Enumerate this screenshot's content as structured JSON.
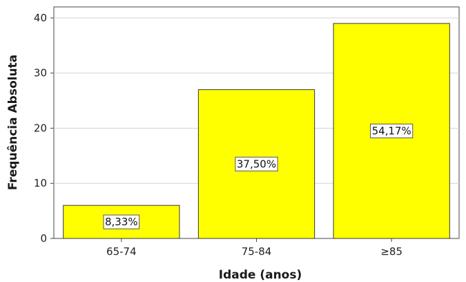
{
  "chart_data": {
    "type": "bar",
    "categories": [
      "65-74",
      "75-84",
      "≥85"
    ],
    "values": [
      6,
      27,
      39
    ],
    "bar_labels": [
      "8,33%",
      "37,50%",
      "54,17%"
    ],
    "xlabel": "Idade (anos)",
    "ylabel": "Frequência Absoluta",
    "ylim": [
      0,
      42
    ],
    "yticks": [
      0,
      10,
      20,
      30,
      40
    ],
    "grid": true,
    "bar_color": "#FFFF00",
    "bar_edge_color": "#333333",
    "grid_color": "#d3d3d3"
  }
}
